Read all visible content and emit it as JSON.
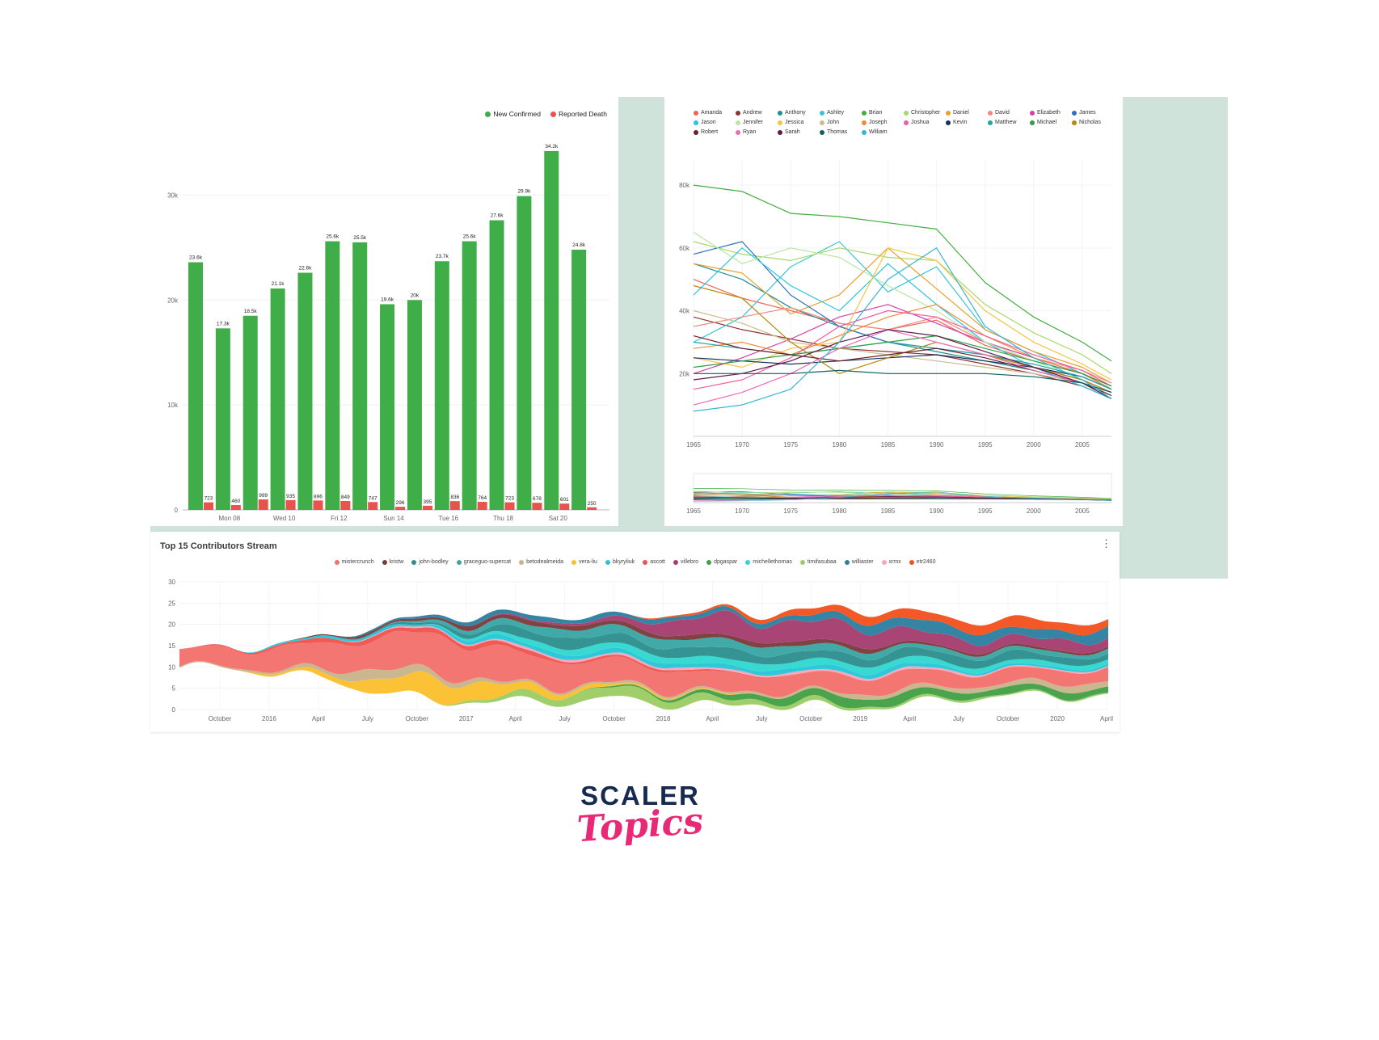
{
  "page": {
    "background": "#ffffff",
    "panel_color": "#cfe3db",
    "card_color": "#ffffff"
  },
  "icons": {
    "more_vertical": "⋮"
  },
  "logo": {
    "primary": "SCALER",
    "secondary": "Topics",
    "primary_color": "#152a4e",
    "secondary_color": "#e82a76"
  },
  "chart_data": [
    {
      "id": "daily-bar",
      "type": "bar",
      "legend": [
        {
          "label": "New Confirmed",
          "color": "#3fae49"
        },
        {
          "label": "Reported Death",
          "color": "#e9534f"
        }
      ],
      "categories": [
        "Mon 08",
        "Wed 10",
        "Fri 12",
        "Sun 14",
        "Tue 16",
        "Thu 18",
        "Sat 20"
      ],
      "y_ticks": [
        {
          "v": 0,
          "label": "0"
        },
        {
          "v": 10,
          "label": "10k"
        },
        {
          "v": 20,
          "label": "20k"
        },
        {
          "v": 30,
          "label": "30k"
        }
      ],
      "ylim": [
        0,
        35.5
      ],
      "series": [
        {
          "name": "New Confirmed",
          "color": "#3fae49",
          "values_k": [
            23.6,
            17.3,
            18.5,
            21.1,
            22.6,
            25.6,
            25.5,
            19.6,
            20.0,
            23.7,
            25.6,
            27.6,
            29.9,
            34.2,
            24.8
          ],
          "labels": [
            "23.6k",
            "17.3k",
            "18.5k",
            "21.1k",
            "22.6k",
            "25.6k",
            "25.5k",
            "19.6k",
            "20k",
            "23.7k",
            "25.6k",
            "27.6k",
            "29.9k",
            "34.2k",
            "24.8k"
          ]
        },
        {
          "name": "Reported Death",
          "color": "#e9534f",
          "values": [
            723,
            460,
            999,
            935,
            896,
            849,
            747,
            296,
            395,
            836,
            764,
            723,
            678,
            601,
            250
          ],
          "labels": [
            "723",
            "460",
            "999",
            "935",
            "896",
            "849",
            "747",
            "296",
            "395",
            "836",
            "764",
            "723",
            "678",
            "601",
            "250"
          ]
        }
      ]
    },
    {
      "id": "names-lines",
      "type": "line",
      "x_years": [
        1965,
        1970,
        1975,
        1980,
        1985,
        1990,
        1995,
        2000,
        2005,
        2008
      ],
      "x_ticks": [
        1965,
        1970,
        1975,
        1980,
        1985,
        1990,
        1995,
        2000,
        2005
      ],
      "y_ticks": [
        {
          "v": 20,
          "label": "20k"
        },
        {
          "v": 40,
          "label": "40k"
        },
        {
          "v": 60,
          "label": "60k"
        },
        {
          "v": 80,
          "label": "80k"
        }
      ],
      "ylim": [
        0,
        88
      ],
      "series": [
        {
          "name": "Amanda",
          "color": "#ee6352",
          "values": [
            50,
            44,
            40,
            36,
            34,
            37,
            29,
            24,
            20,
            16
          ]
        },
        {
          "name": "Andrew",
          "color": "#8c3330",
          "values": [
            38,
            34,
            31,
            28,
            27,
            26,
            23,
            20,
            16,
            12
          ]
        },
        {
          "name": "Anthony",
          "color": "#1f8f8f",
          "values": [
            55,
            50,
            41,
            35,
            30,
            27,
            24,
            21,
            17,
            13
          ]
        },
        {
          "name": "Ashley",
          "color": "#38c5d6",
          "values": [
            30,
            38,
            54,
            62,
            46,
            54,
            34,
            27,
            20,
            15
          ]
        },
        {
          "name": "Brian",
          "color": "#3faf3f",
          "values": [
            80,
            78,
            71,
            70,
            68,
            66,
            49,
            38,
            30,
            24
          ]
        },
        {
          "name": "Christopher",
          "color": "#a5d96a",
          "values": [
            62,
            58,
            56,
            60,
            57,
            56,
            42,
            33,
            26,
            20
          ]
        },
        {
          "name": "Daniel",
          "color": "#e8a02e",
          "values": [
            55,
            52,
            39,
            45,
            60,
            47,
            34,
            27,
            22,
            17
          ]
        },
        {
          "name": "David",
          "color": "#f08a80",
          "values": [
            35,
            38,
            41,
            36,
            34,
            38,
            30,
            25,
            21,
            17
          ]
        },
        {
          "name": "Elizabeth",
          "color": "#d63fa6",
          "values": [
            20,
            25,
            31,
            38,
            42,
            36,
            30,
            25,
            20,
            15
          ]
        },
        {
          "name": "James",
          "color": "#2e6fbb",
          "values": [
            58,
            62,
            45,
            35,
            30,
            28,
            26,
            22,
            18,
            14
          ]
        },
        {
          "name": "Jason",
          "color": "#27c6e0",
          "values": [
            45,
            60,
            48,
            40,
            55,
            42,
            30,
            22,
            16,
            12
          ]
        },
        {
          "name": "Jennifer",
          "color": "#b9e6a3",
          "values": [
            65,
            55,
            60,
            57,
            48,
            40,
            30,
            24,
            18,
            13
          ]
        },
        {
          "name": "Jessica",
          "color": "#f5c542",
          "values": [
            25,
            22,
            28,
            30,
            60,
            56,
            40,
            30,
            23,
            18
          ]
        },
        {
          "name": "John",
          "color": "#c9bd8f",
          "values": [
            40,
            36,
            30,
            28,
            26,
            24,
            22,
            20,
            17,
            14
          ]
        },
        {
          "name": "Joseph",
          "color": "#ef8b33",
          "values": [
            28,
            30,
            26,
            32,
            38,
            42,
            32,
            25,
            20,
            15
          ]
        },
        {
          "name": "Joshua",
          "color": "#f05fa0",
          "values": [
            15,
            18,
            25,
            35,
            40,
            38,
            32,
            26,
            21,
            16
          ]
        },
        {
          "name": "Kevin",
          "color": "#16315e",
          "values": [
            25,
            24,
            23,
            24,
            25,
            26,
            24,
            22,
            19,
            15
          ]
        },
        {
          "name": "Matthew",
          "color": "#1fa4a8",
          "values": [
            30,
            28,
            26,
            28,
            30,
            28,
            26,
            23,
            19,
            15
          ]
        },
        {
          "name": "Michael",
          "color": "#2e9e44",
          "values": [
            22,
            24,
            26,
            28,
            30,
            32,
            28,
            24,
            20,
            16
          ]
        },
        {
          "name": "Nicholas",
          "color": "#b8860b",
          "values": [
            48,
            44,
            30,
            20,
            25,
            30,
            26,
            22,
            18,
            14
          ]
        },
        {
          "name": "Robert",
          "color": "#6b1f2a",
          "values": [
            32,
            28,
            26,
            24,
            26,
            28,
            25,
            21,
            17,
            13
          ]
        },
        {
          "name": "Ryan",
          "color": "#ef6ab8",
          "values": [
            10,
            14,
            20,
            28,
            34,
            30,
            26,
            21,
            17,
            12
          ]
        },
        {
          "name": "Sarah",
          "color": "#5c1a4f",
          "values": [
            18,
            20,
            24,
            30,
            34,
            32,
            27,
            22,
            17,
            12
          ]
        },
        {
          "name": "Thomas",
          "color": "#0f5f63",
          "values": [
            20,
            20,
            20,
            21,
            20,
            20,
            20,
            19,
            17,
            14
          ]
        },
        {
          "name": "William",
          "color": "#35b6d9",
          "values": [
            8,
            10,
            15,
            30,
            50,
            60,
            35,
            25,
            18,
            12
          ]
        }
      ]
    },
    {
      "id": "contributors-stream",
      "type": "area",
      "title": "Top 15 Contributors Stream",
      "x_ticks": [
        "October",
        "2016",
        "April",
        "July",
        "October",
        "2017",
        "April",
        "July",
        "October",
        "2018",
        "April",
        "July",
        "October",
        "2019",
        "April",
        "July",
        "October",
        "2020",
        "April"
      ],
      "y_ticks": [
        0,
        5,
        10,
        15,
        20,
        25,
        30
      ],
      "ylim": [
        0,
        30
      ],
      "center": 12,
      "legend": [
        {
          "label": "mistercrunch",
          "color": "#f2706d"
        },
        {
          "label": "kristw",
          "color": "#7a3b3b"
        },
        {
          "label": "john-bodley",
          "color": "#2e8f8f"
        },
        {
          "label": "graceguo-supercat",
          "color": "#3aa6a6"
        },
        {
          "label": "betodealmeida",
          "color": "#c9b48a"
        },
        {
          "label": "vera-liu",
          "color": "#fbc02d"
        },
        {
          "label": "bkyryliuk",
          "color": "#26c6da"
        },
        {
          "label": "ascott",
          "color": "#ef5350"
        },
        {
          "label": "villebro",
          "color": "#a63d6f"
        },
        {
          "label": "dpgaspar",
          "color": "#43a047"
        },
        {
          "label": "michellethomas",
          "color": "#2fd7cf"
        },
        {
          "label": "timifasubaa",
          "color": "#9ccc65"
        },
        {
          "label": "williaster",
          "color": "#2e7f9f"
        },
        {
          "label": "xrmx",
          "color": "#f4a7b9"
        },
        {
          "label": "etr2460",
          "color": "#f4511e"
        }
      ],
      "series": [
        {
          "name": "timifasubaa",
          "color": "#9ccc65",
          "values": [
            0,
            0,
            0,
            0,
            0,
            0,
            0.5,
            1.5,
            2,
            2.5,
            2,
            1.5,
            1,
            1,
            0.5,
            0.5,
            0.5,
            0.3,
            0.3,
            0.3
          ]
        },
        {
          "name": "dpgaspar",
          "color": "#43a047",
          "values": [
            0,
            0,
            0,
            0,
            0,
            0,
            0,
            0,
            0,
            0.3,
            0.5,
            1,
            1.5,
            2,
            2,
            2,
            1.5,
            1.5,
            1.5,
            1.5
          ]
        },
        {
          "name": "vera-liu",
          "color": "#fbc02d",
          "values": [
            0,
            0,
            0.5,
            1,
            3,
            5,
            4,
            2,
            1,
            0.5,
            0.3,
            0.2,
            0,
            0,
            0,
            0,
            0,
            0,
            0,
            0
          ]
        },
        {
          "name": "betodealmeida",
          "color": "#c9b48a",
          "values": [
            0.2,
            0.3,
            0.5,
            1,
            2.5,
            1.5,
            1,
            0.5,
            0.5,
            0.5,
            0.5,
            0.5,
            0.5,
            0.5,
            1,
            1,
            1,
            1,
            1.5,
            1.5
          ]
        },
        {
          "name": "mistercrunch",
          "color": "#f2706d",
          "values": [
            4,
            4,
            5,
            6,
            7,
            9,
            8,
            7,
            6,
            5,
            5,
            4,
            4,
            4,
            4,
            4,
            3,
            3,
            3,
            3
          ]
        },
        {
          "name": "ascott",
          "color": "#ef5350",
          "values": [
            0,
            0.3,
            0.5,
            1,
            1,
            1,
            1,
            1,
            0.5,
            0.5,
            0.5,
            0.3,
            0.2,
            0,
            0,
            0,
            0,
            0,
            0,
            0
          ]
        },
        {
          "name": "xrmx",
          "color": "#f4a7b9",
          "values": [
            0,
            0,
            0,
            0,
            0.2,
            0.3,
            0.3,
            0.5,
            0.5,
            0.5,
            0.5,
            0.5,
            0.5,
            0.5,
            0.5,
            0.5,
            0.5,
            0.3,
            0.3,
            0.3
          ]
        },
        {
          "name": "bkyryliuk",
          "color": "#26c6da",
          "values": [
            0,
            0,
            0.3,
            0.5,
            0.5,
            0.5,
            1,
            1,
            1,
            1,
            1,
            1,
            1,
            1,
            1,
            1,
            0.5,
            0.5,
            0.5,
            0.5
          ]
        },
        {
          "name": "michellethomas",
          "color": "#2fd7cf",
          "values": [
            0,
            0,
            0,
            0,
            0,
            0,
            0.5,
            1,
            1.5,
            1.5,
            1.5,
            1.5,
            1.5,
            1.5,
            1.5,
            1.5,
            1,
            1,
            1,
            1
          ]
        },
        {
          "name": "john-bodley",
          "color": "#2e8f8f",
          "values": [
            0,
            0,
            0,
            0,
            0.3,
            0.5,
            1,
            2,
            2.5,
            2,
            2,
            2.5,
            2,
            2,
            2,
            2,
            2,
            2,
            1.5,
            1.5
          ]
        },
        {
          "name": "graceguo-supercat",
          "color": "#3aa6a6",
          "values": [
            0,
            0,
            0,
            0,
            0,
            0.5,
            1,
            1.5,
            2,
            2,
            2,
            2,
            2,
            1.5,
            1.5,
            1,
            1,
            1,
            1,
            1
          ]
        },
        {
          "name": "kristw",
          "color": "#7a3b3b",
          "values": [
            0,
            0,
            0,
            0.3,
            0.5,
            0.5,
            1,
            1,
            1,
            1,
            1,
            1,
            1,
            1,
            1,
            0.5,
            0.5,
            0.5,
            0.5,
            0.5
          ]
        },
        {
          "name": "villebro",
          "color": "#a63d6f",
          "values": [
            0,
            0,
            0,
            0,
            0,
            0,
            0,
            0.3,
            0.5,
            1,
            3,
            5,
            4,
            5,
            4,
            3,
            2.5,
            2,
            2.5,
            2
          ]
        },
        {
          "name": "williaster",
          "color": "#2e7f9f",
          "values": [
            0,
            0,
            0,
            0,
            0.3,
            0.5,
            1,
            1,
            1,
            1,
            1,
            1,
            1,
            1.5,
            2,
            2.5,
            2.5,
            2,
            2,
            2.5
          ]
        },
        {
          "name": "etr2460",
          "color": "#f4511e",
          "values": [
            0,
            0,
            0,
            0,
            0,
            0,
            0,
            0,
            0,
            0,
            0.3,
            0.5,
            1,
            1.5,
            2,
            2,
            2,
            2.5,
            2,
            2
          ]
        }
      ]
    }
  ]
}
